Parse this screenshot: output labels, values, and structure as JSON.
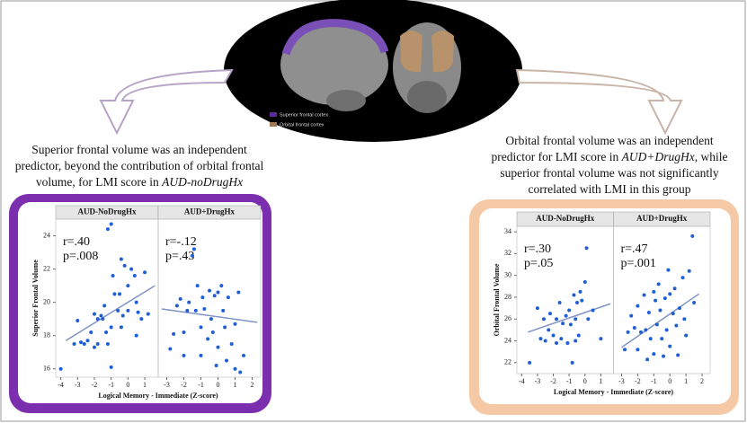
{
  "legend": [
    "Superior frontal cortex",
    "Orbital frontal cortex"
  ],
  "left_caption": {
    "lines": [
      "Superior  frontal volume was an independent",
      "predictor, beyond the contribution of orbital frontal"
    ],
    "last": "volume, for LMI score in ",
    "last_italic": "AUD-noDrugHx"
  },
  "right_caption": {
    "line1": "Orbital frontal volume was an independent",
    "line2": "predictor for LMI score in ",
    "line2_italic": "AUD+DrugHx",
    "line2_end": ", while",
    "line3": "superior frontal volume was not significantly",
    "line4": "correlated with LMI in this group"
  },
  "chart_data": [
    {
      "type": "scatter",
      "ylabel": "Superior Frontal Volume",
      "xlabel": "Logical Memory - Immediate (Z-score)",
      "ylim": [
        15.5,
        25
      ],
      "yticks": [
        16,
        18,
        20,
        22,
        24
      ],
      "point_color": "#1f5fd6",
      "line_color": "#7f93c6",
      "frame_color": "#7b2fae",
      "facets": [
        {
          "title": "AUD-NoDrugHx",
          "annotation": [
            "r=.40",
            "p=.008"
          ],
          "xlim": [
            -4.3,
            1.8
          ],
          "xticks": [
            -4,
            -3,
            -2,
            -1,
            0,
            1
          ],
          "x": [
            -4,
            -3.2,
            -3,
            -2.8,
            -2.6,
            -2.4,
            -2.2,
            -2,
            -2,
            -1.8,
            -1.6,
            -1.5,
            -1.4,
            -1.3,
            -1.2,
            -1.2,
            -1,
            -1,
            -1,
            -0.9,
            -0.8,
            -0.6,
            -0.5,
            -0.4,
            -0.3,
            -0.2,
            0,
            0,
            0.2,
            0.4,
            0.5,
            0.6,
            0.8,
            1,
            1.2,
            0.5,
            -0.4,
            -1.8
          ],
          "y": [
            16,
            17.5,
            18.9,
            17.6,
            17.5,
            17.7,
            18.2,
            19.3,
            17.3,
            19,
            19.2,
            19,
            19.8,
            18.2,
            17.5,
            24.4,
            24.7,
            18.5,
            16.1,
            21.6,
            20.5,
            19.5,
            20.5,
            22.6,
            19.2,
            22.2,
            21,
            19.5,
            22,
            21.6,
            20,
            19.4,
            19,
            21.8,
            19.3,
            18,
            18.5,
            17.5
          ],
          "trend_x": [
            -3.7,
            1.6
          ],
          "trend_y": [
            17.7,
            21
          ]
        },
        {
          "title": "AUD+DrugHx",
          "annotation": [
            "r=-.12",
            "p=.43"
          ],
          "xlim": [
            -3.5,
            2.5
          ],
          "xticks": [
            -3,
            -2,
            -1,
            0,
            1,
            2
          ],
          "x": [
            -2.8,
            -2.6,
            -2.4,
            -2.2,
            -2,
            -2,
            -1.8,
            -1.7,
            -1.5,
            -1.4,
            -1.3,
            -1.2,
            -1,
            -1,
            -0.9,
            -0.8,
            -0.6,
            -0.5,
            -0.4,
            -0.3,
            -0.2,
            0,
            0,
            0.2,
            0.3,
            0.4,
            0.5,
            0.6,
            0.8,
            1,
            1,
            1.2,
            1.3,
            1.5,
            -0.1
          ],
          "y": [
            17.2,
            18.1,
            19.8,
            20.2,
            18.2,
            16.8,
            19.5,
            20,
            22.8,
            23.2,
            19.5,
            21,
            18.5,
            16.8,
            20.3,
            19.6,
            17.8,
            20.7,
            19,
            18.2,
            20.4,
            20.6,
            17.3,
            21,
            19.5,
            18.5,
            16.5,
            20.3,
            17.5,
            16,
            18.7,
            20.6,
            15.8,
            16.8,
            16.2
          ],
          "trend_x": [
            -3.3,
            2.3
          ],
          "trend_y": [
            19.6,
            18.8
          ]
        }
      ]
    },
    {
      "type": "scatter",
      "ylabel": "Orbital Frontal Volume",
      "xlabel": "Logical Memory - Immediate (Z-score)",
      "ylim": [
        21,
        34.5
      ],
      "yticks": [
        22,
        24,
        26,
        28,
        30,
        32,
        34
      ],
      "point_color": "#1f5fd6",
      "line_color": "#7f93c6",
      "frame_color": "#f6c9a6",
      "facets": [
        {
          "title": "AUD-NoDrugHx",
          "annotation": [
            "r=.30",
            "p=.05"
          ],
          "xlim": [
            -4.3,
            1.8
          ],
          "xticks": [
            -4,
            -3,
            -2,
            -1,
            0,
            1
          ],
          "x": [
            -3.5,
            -3,
            -2.8,
            -2.6,
            -2.5,
            -2.3,
            -2.2,
            -2,
            -1.8,
            -1.6,
            -1.5,
            -1.4,
            -1.2,
            -1.1,
            -1,
            -0.9,
            -0.8,
            -0.7,
            -0.6,
            -0.5,
            -0.4,
            -0.3,
            -0.2,
            0,
            0.1,
            0.2,
            0.5,
            1,
            -1.8,
            -0.6
          ],
          "y": [
            22,
            27,
            24.2,
            26,
            24,
            25,
            26.5,
            24.5,
            26,
            27.5,
            24.2,
            25.6,
            26.3,
            23.8,
            26.8,
            25.5,
            22,
            28.2,
            26,
            27.5,
            24.5,
            28.5,
            27.7,
            29.4,
            32.5,
            26,
            26.8,
            24.2,
            23.8,
            24
          ],
          "trend_x": [
            -3.6,
            1.6
          ],
          "trend_y": [
            24.8,
            27.4
          ]
        },
        {
          "title": "AUD+DrugHx",
          "annotation": [
            "r=.47",
            "p=.001"
          ],
          "xlim": [
            -3.5,
            2.5
          ],
          "xticks": [
            -3,
            -2,
            -1,
            0,
            1,
            2
          ],
          "x": [
            -2.8,
            -2.6,
            -2.4,
            -2.2,
            -2,
            -2,
            -1.8,
            -1.6,
            -1.5,
            -1.4,
            -1.3,
            -1.2,
            -1,
            -1,
            -0.9,
            -0.8,
            -0.7,
            -0.6,
            -0.5,
            -0.4,
            -0.3,
            -0.2,
            0,
            0,
            0.2,
            0.3,
            0.4,
            0.5,
            0.6,
            0.8,
            0.9,
            1,
            1.2,
            1.4,
            1.5,
            -0.1
          ],
          "y": [
            23.2,
            24.8,
            26.3,
            25.2,
            27.2,
            23.2,
            24.8,
            28.2,
            25,
            22.3,
            26.6,
            24.2,
            28.5,
            22.8,
            27.7,
            25.5,
            29.2,
            26.8,
            24.2,
            22.6,
            27.9,
            25,
            28.3,
            23.5,
            26.5,
            28.8,
            25.4,
            22.7,
            27,
            29.8,
            26,
            24.5,
            30.4,
            33.6,
            27.5,
            30.5
          ],
          "trend_x": [
            -3,
            1.8
          ],
          "trend_y": [
            23.4,
            28.3
          ]
        }
      ]
    }
  ]
}
